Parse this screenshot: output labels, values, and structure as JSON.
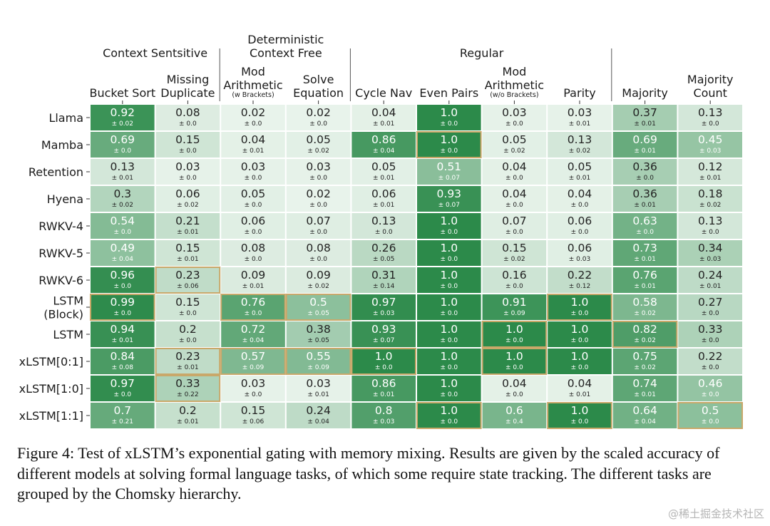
{
  "caption": "Figure 4: Test of xLSTM’s exponential gating with memory mixing. Results are given by the scaled accuracy of different models at solving formal language tasks, of which some require state tracking. The different tasks are grouped by the Chomsky hierarchy.",
  "watermark": "@稀土掘金技术社区",
  "colors": {
    "low": "#ecf5ee",
    "high": "#2c8a4a",
    "highlight_border": "#c9a86a",
    "best_border": "#d4aa44"
  },
  "chart_data": {
    "type": "heatmap",
    "groups": [
      {
        "label_lines": [
          "Context Sentsitive"
        ],
        "columns": [
          0,
          1
        ]
      },
      {
        "label_lines": [
          "Deterministic",
          "Context Free"
        ],
        "columns": [
          2,
          3
        ]
      },
      {
        "label_lines": [
          "Regular"
        ],
        "columns": [
          4,
          5,
          6,
          7
        ]
      },
      {
        "label_lines": [],
        "columns": [
          8,
          9
        ]
      }
    ],
    "columns": [
      {
        "lines": [
          "Bucket Sort"
        ]
      },
      {
        "lines": [
          "Missing",
          "Duplicate"
        ]
      },
      {
        "lines": [
          "Mod",
          "Arithmetic"
        ],
        "sub": "(w Brackets)"
      },
      {
        "lines": [
          "Solve",
          "Equation"
        ]
      },
      {
        "lines": [
          "Cycle Nav"
        ]
      },
      {
        "lines": [
          "Even Pairs"
        ]
      },
      {
        "lines": [
          "Mod",
          "Arithmetic"
        ],
        "sub": "(w/o Brackets)"
      },
      {
        "lines": [
          "Parity"
        ]
      },
      {
        "lines": [
          "Majority"
        ]
      },
      {
        "lines": [
          "Majority",
          "Count"
        ]
      }
    ],
    "rows": [
      {
        "label_lines": [
          "Llama"
        ],
        "values": [
          "0.92",
          "0.08",
          "0.02",
          "0.02",
          "0.04",
          "1.0",
          "0.03",
          "0.03",
          "0.37",
          "0.13"
        ],
        "errors": [
          "± 0.02",
          "± 0.0",
          "± 0.0",
          "± 0.0",
          "± 0.01",
          "± 0.0",
          "± 0.0",
          "± 0.01",
          "± 0.01",
          "± 0.0"
        ],
        "highlight": []
      },
      {
        "label_lines": [
          "Mamba"
        ],
        "values": [
          "0.69",
          "0.15",
          "0.04",
          "0.05",
          "0.86",
          "1.0",
          "0.05",
          "0.13",
          "0.69",
          "0.45"
        ],
        "errors": [
          "± 0.0",
          "± 0.0",
          "± 0.01",
          "± 0.02",
          "± 0.04",
          "± 0.0",
          "± 0.02",
          "± 0.02",
          "± 0.01",
          "± 0.03"
        ],
        "highlight": [
          5
        ]
      },
      {
        "label_lines": [
          "Retention"
        ],
        "values": [
          "0.13",
          "0.03",
          "0.03",
          "0.03",
          "0.05",
          "0.51",
          "0.04",
          "0.05",
          "0.36",
          "0.12"
        ],
        "errors": [
          "± 0.01",
          "± 0.0",
          "± 0.0",
          "± 0.0",
          "± 0.01",
          "± 0.07",
          "± 0.0",
          "± 0.01",
          "± 0.0",
          "± 0.01"
        ],
        "highlight": []
      },
      {
        "label_lines": [
          "Hyena"
        ],
        "values": [
          "0.3",
          "0.06",
          "0.05",
          "0.02",
          "0.06",
          "0.93",
          "0.04",
          "0.04",
          "0.36",
          "0.18"
        ],
        "errors": [
          "± 0.02",
          "± 0.02",
          "± 0.0",
          "± 0.0",
          "± 0.01",
          "± 0.07",
          "± 0.0",
          "± 0.0",
          "± 0.01",
          "± 0.02"
        ],
        "highlight": []
      },
      {
        "label_lines": [
          "RWKV-4"
        ],
        "values": [
          "0.54",
          "0.21",
          "0.06",
          "0.07",
          "0.13",
          "1.0",
          "0.07",
          "0.06",
          "0.63",
          "0.13"
        ],
        "errors": [
          "± 0.0",
          "± 0.01",
          "± 0.0",
          "± 0.0",
          "± 0.0",
          "± 0.0",
          "± 0.0",
          "± 0.0",
          "± 0.0",
          "± 0.0"
        ],
        "highlight": []
      },
      {
        "label_lines": [
          "RWKV-5"
        ],
        "values": [
          "0.49",
          "0.15",
          "0.08",
          "0.08",
          "0.26",
          "1.0",
          "0.15",
          "0.06",
          "0.73",
          "0.34"
        ],
        "errors": [
          "± 0.04",
          "± 0.01",
          "± 0.0",
          "± 0.0",
          "± 0.05",
          "± 0.0",
          "± 0.02",
          "± 0.03",
          "± 0.01",
          "± 0.03"
        ],
        "highlight": []
      },
      {
        "label_lines": [
          "RWKV-6"
        ],
        "values": [
          "0.96",
          "0.23",
          "0.09",
          "0.09",
          "0.31",
          "1.0",
          "0.16",
          "0.22",
          "0.76",
          "0.24"
        ],
        "errors": [
          "± 0.0",
          "± 0.06",
          "± 0.01",
          "± 0.02",
          "± 0.14",
          "± 0.0",
          "± 0.0",
          "± 0.12",
          "± 0.01",
          "± 0.01"
        ],
        "highlight": [
          1
        ]
      },
      {
        "label_lines": [
          "LSTM",
          "(Block)"
        ],
        "values": [
          "0.99",
          "0.15",
          "0.76",
          "0.5",
          "0.97",
          "1.0",
          "0.91",
          "1.0",
          "0.58",
          "0.27"
        ],
        "errors": [
          "± 0.0",
          "± 0.0",
          "± 0.0",
          "± 0.05",
          "± 0.03",
          "± 0.0",
          "± 0.09",
          "± 0.0",
          "± 0.02",
          "± 0.0"
        ],
        "highlight": [
          0,
          2,
          3,
          7
        ]
      },
      {
        "label_lines": [
          "LSTM"
        ],
        "values": [
          "0.94",
          "0.2",
          "0.72",
          "0.38",
          "0.93",
          "1.0",
          "1.0",
          "1.0",
          "0.82",
          "0.33"
        ],
        "errors": [
          "± 0.01",
          "± 0.0",
          "± 0.04",
          "± 0.05",
          "± 0.07",
          "± 0.0",
          "± 0.0",
          "± 0.0",
          "± 0.02",
          "± 0.0"
        ],
        "highlight": [
          6,
          8
        ]
      },
      {
        "label_lines": [
          "xLSTM[0:1]"
        ],
        "values": [
          "0.84",
          "0.23",
          "0.57",
          "0.55",
          "1.0",
          "1.0",
          "1.0",
          "1.0",
          "0.75",
          "0.22"
        ],
        "errors": [
          "± 0.08",
          "± 0.01",
          "± 0.09",
          "± 0.09",
          "± 0.0",
          "± 0.0",
          "± 0.0",
          "± 0.0",
          "± 0.02",
          "± 0.0"
        ],
        "highlight": [
          1,
          2,
          3,
          4,
          6
        ]
      },
      {
        "label_lines": [
          "xLSTM[1:0]"
        ],
        "values": [
          "0.97",
          "0.33",
          "0.03",
          "0.03",
          "0.86",
          "1.0",
          "0.04",
          "0.04",
          "0.74",
          "0.46"
        ],
        "errors": [
          "± 0.0",
          "± 0.22",
          "± 0.0",
          "± 0.01",
          "± 0.01",
          "± 0.0",
          "± 0.0",
          "± 0.01",
          "± 0.01",
          "± 0.0"
        ],
        "highlight": [
          1
        ]
      },
      {
        "label_lines": [
          "xLSTM[1:1]"
        ],
        "values": [
          "0.7",
          "0.2",
          "0.15",
          "0.24",
          "0.8",
          "1.0",
          "0.6",
          "1.0",
          "0.64",
          "0.5"
        ],
        "errors": [
          "± 0.21",
          "± 0.01",
          "± 0.06",
          "± 0.04",
          "± 0.03",
          "± 0.0",
          "± 0.4",
          "± 0.0",
          "± 0.04",
          "± 0.0"
        ],
        "highlight": [
          5,
          7,
          9
        ]
      }
    ]
  }
}
